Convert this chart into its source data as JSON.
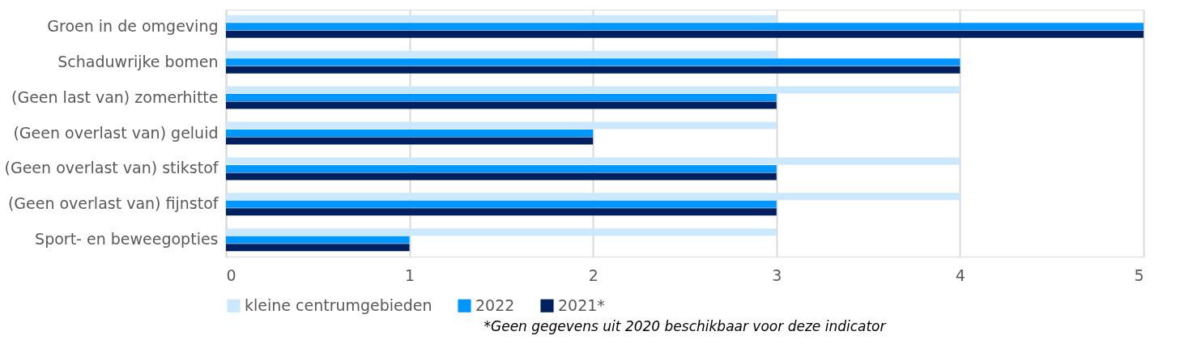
{
  "chart_data": {
    "type": "bar",
    "orientation": "horizontal",
    "categories": [
      "Groen in de omgeving",
      "Schaduwrijke bomen",
      "(Geen last van) zomerhitte",
      "(Geen overlast van) geluid",
      "(Geen overlast van) stikstof",
      "(Geen overlast van) fijnstof",
      "Sport- en beweegopties"
    ],
    "series": [
      {
        "name": "kleine centrumgebieden",
        "color": "#cce8fc",
        "values": [
          3,
          3,
          4,
          3,
          4,
          4,
          3
        ]
      },
      {
        "name": "2022",
        "color": "#0096ff",
        "values": [
          5,
          4,
          3,
          2,
          3,
          3,
          1
        ]
      },
      {
        "name": "2021*",
        "color": "#002060",
        "values": [
          5,
          4,
          3,
          2,
          3,
          3,
          1
        ]
      }
    ],
    "xlim": [
      0,
      5
    ],
    "xticks": [
      0,
      1,
      2,
      3,
      4,
      5
    ],
    "grid": "x",
    "legend": "bottom",
    "annotations": [
      "*Geen gegevens uit 2020 beschikbaar voor deze indicator"
    ]
  }
}
